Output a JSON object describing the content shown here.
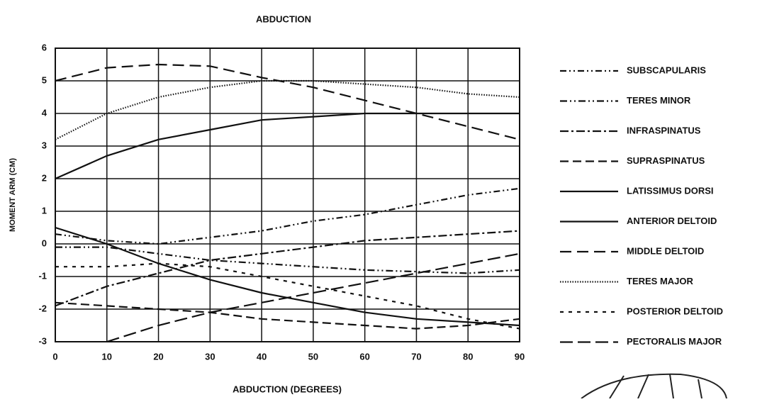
{
  "chart_data": {
    "type": "line",
    "title": "ABDUCTION",
    "x_label": "ABDUCTION (DEGREES)",
    "y_label": "MOMENT ARM (CM)",
    "x": [
      0,
      10,
      20,
      30,
      40,
      50,
      60,
      70,
      80,
      90
    ],
    "xlim": [
      0,
      90
    ],
    "xticks": [
      0,
      10,
      20,
      30,
      40,
      50,
      60,
      70,
      80,
      90
    ],
    "ylim": [
      -3,
      6
    ],
    "yticks": [
      -3,
      -2,
      -1,
      0,
      1,
      2,
      3,
      4,
      5,
      6
    ],
    "grid": true,
    "legend": "right",
    "series": [
      {
        "name": "SUBSCAPULARIS",
        "color": "#111",
        "dash": "9 4 2 4 2 4",
        "values": [
          0.3,
          0.1,
          0.0,
          0.2,
          0.4,
          0.7,
          0.9,
          1.2,
          1.5,
          1.7
        ]
      },
      {
        "name": "TERES MINOR",
        "color": "#111",
        "dash": "10 4 2 4 2 4",
        "values": [
          -0.1,
          -0.1,
          -0.3,
          -0.5,
          -0.6,
          -0.7,
          -0.8,
          -0.85,
          -0.9,
          -0.8
        ]
      },
      {
        "name": "INFRASPINATUS",
        "color": "#111",
        "dash": "12 4 3 4",
        "values": [
          -1.9,
          -1.3,
          -0.9,
          -0.5,
          -0.3,
          -0.1,
          0.1,
          0.2,
          0.3,
          0.4
        ]
      },
      {
        "name": "SUPRASPINATUS",
        "color": "#111",
        "dash": "12 6",
        "values": [
          -1.8,
          -1.9,
          -2.0,
          -2.1,
          -2.3,
          -2.4,
          -2.5,
          -2.6,
          -2.5,
          -2.3
        ]
      },
      {
        "name": "LATISSIMUS DORSI",
        "color": "#111",
        "dash": "",
        "values": [
          0.5,
          0.0,
          -0.6,
          -1.1,
          -1.5,
          -1.8,
          -2.1,
          -2.3,
          -2.4,
          -2.5
        ]
      },
      {
        "name": "ANTERIOR DELTOID",
        "color": "#111",
        "dash": "",
        "values": [
          2.0,
          2.7,
          3.2,
          3.5,
          3.8,
          3.9,
          4.0,
          4.0,
          4.0,
          4.0
        ]
      },
      {
        "name": "MIDDLE DELTOID",
        "color": "#111",
        "dash": "16 8",
        "values": [
          5.0,
          5.4,
          5.5,
          5.45,
          5.1,
          4.8,
          4.4,
          4.0,
          3.6,
          3.2
        ]
      },
      {
        "name": "TERES MAJOR",
        "color": "#111",
        "dash": "1.5 2",
        "values": [
          3.2,
          4.0,
          4.5,
          4.8,
          5.0,
          5.0,
          4.9,
          4.8,
          4.6,
          4.5
        ]
      },
      {
        "name": "POSTERIOR DELTOID",
        "color": "#111",
        "dash": "5 7",
        "values": [
          -0.7,
          -0.7,
          -0.6,
          -0.7,
          -1.0,
          -1.3,
          -1.6,
          -1.9,
          -2.3,
          -2.6
        ]
      },
      {
        "name": "PECTORALIS MAJOR",
        "color": "#111",
        "dash": "18 7",
        "values": [
          null,
          -3.0,
          -2.5,
          -2.1,
          -1.8,
          -1.5,
          -1.2,
          -0.9,
          -0.6,
          -0.3
        ]
      }
    ]
  }
}
